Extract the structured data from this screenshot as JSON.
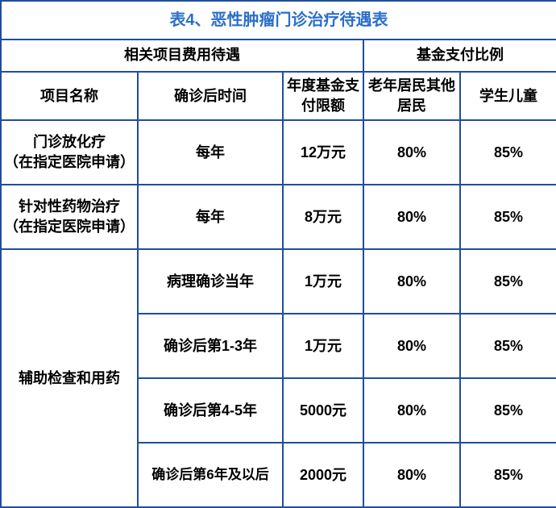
{
  "title": "表4、恶性肿瘤门诊治疗待遇表",
  "headers": {
    "group_left": "相关项目费用待遇",
    "group_right": "基金支付比例",
    "col_name": "项目名称",
    "col_time": "确诊后时间",
    "col_limit": "年度基金支付限额",
    "col_p1": "老年居民其他居民",
    "col_p2": "学生儿童"
  },
  "rows": [
    {
      "name": "门诊放化疗\n（在指定医院申请）",
      "time": "每年",
      "limit": "12万元",
      "p1": "80%",
      "p2": "85%"
    },
    {
      "name": "针对性药物治疗\n（在指定医院申请）",
      "time": "每年",
      "limit": "8万元",
      "p1": "80%",
      "p2": "85%"
    }
  ],
  "aux": {
    "name": "辅助检查和用药",
    "items": [
      {
        "time": "病理确诊当年",
        "limit": "1万元",
        "p1": "80%",
        "p2": "85%"
      },
      {
        "time": "确诊后第1-3年",
        "limit": "1万元",
        "p1": "80%",
        "p2": "85%"
      },
      {
        "time": "确诊后第4-5年",
        "limit": "5000元",
        "p1": "80%",
        "p2": "85%"
      },
      {
        "time": "确诊后第6年及以后",
        "limit": "2000元",
        "p1": "80%",
        "p2": "85%"
      }
    ]
  },
  "colors": {
    "border": "#1f4e9c",
    "title_text": "#2a6fc9",
    "cell_text": "#000000",
    "background": "#ffffff"
  }
}
